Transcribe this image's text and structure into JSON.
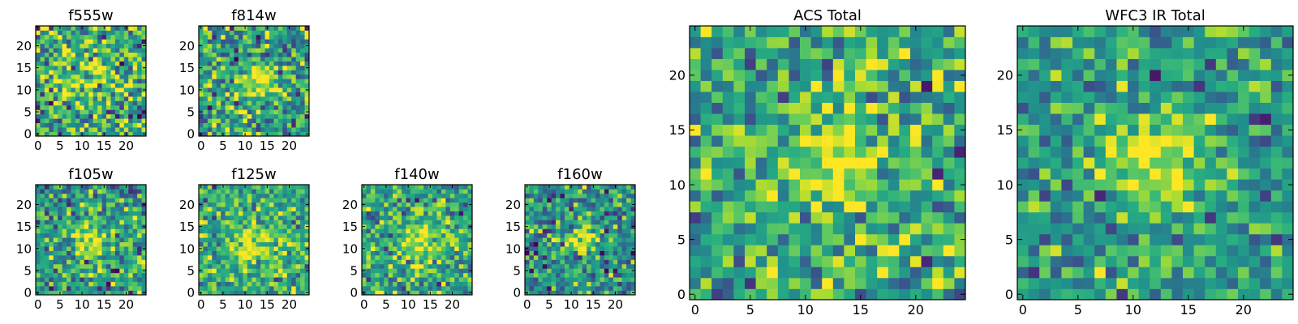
{
  "chart_data": [
    {
      "type": "heatmap",
      "title": "f555w",
      "xlabel": "",
      "ylabel": "",
      "xlim": [
        -0.5,
        24.5
      ],
      "ylim": [
        -0.5,
        24.5
      ],
      "xticks": [
        0,
        5,
        10,
        15,
        20
      ],
      "yticks": [
        0,
        5,
        10,
        15,
        20
      ],
      "grid_size": 25,
      "colormap": "viridis",
      "seed": 11,
      "noise": 0.65,
      "peak": 0.25,
      "center": [
        11,
        12
      ],
      "width": 4.0,
      "base": 0.62
    },
    {
      "type": "heatmap",
      "title": "f814w",
      "xlabel": "",
      "ylabel": "",
      "xlim": [
        -0.5,
        24.5
      ],
      "ylim": [
        -0.5,
        24.5
      ],
      "xticks": [
        0,
        5,
        10,
        15,
        20
      ],
      "yticks": [
        0,
        5,
        10,
        15,
        20
      ],
      "grid_size": 25,
      "colormap": "viridis",
      "seed": 23,
      "noise": 0.6,
      "peak": 0.45,
      "center": [
        13,
        12
      ],
      "width": 2.6,
      "base": 0.58
    },
    {
      "type": "heatmap",
      "title": "f105w",
      "xlabel": "",
      "ylabel": "",
      "xlim": [
        -0.5,
        24.5
      ],
      "ylim": [
        -0.5,
        24.5
      ],
      "xticks": [
        0,
        5,
        10,
        15,
        20
      ],
      "yticks": [
        0,
        5,
        10,
        15,
        20
      ],
      "grid_size": 25,
      "colormap": "viridis",
      "seed": 37,
      "noise": 0.55,
      "peak": 0.4,
      "center": [
        12,
        12
      ],
      "width": 2.8,
      "base": 0.56
    },
    {
      "type": "heatmap",
      "title": "f125w",
      "xlabel": "",
      "ylabel": "",
      "xlim": [
        -0.5,
        24.5
      ],
      "ylim": [
        -0.5,
        24.5
      ],
      "xticks": [
        0,
        5,
        10,
        15,
        20
      ],
      "yticks": [
        0,
        5,
        10,
        15,
        20
      ],
      "grid_size": 25,
      "colormap": "viridis",
      "seed": 41,
      "noise": 0.5,
      "peak": 0.35,
      "center": [
        12,
        11
      ],
      "width": 3.2,
      "base": 0.62
    },
    {
      "type": "heatmap",
      "title": "f140w",
      "xlabel": "",
      "ylabel": "",
      "xlim": [
        -0.5,
        24.5
      ],
      "ylim": [
        -0.5,
        24.5
      ],
      "xticks": [
        0,
        5,
        10,
        15,
        20
      ],
      "yticks": [
        0,
        5,
        10,
        15,
        20
      ],
      "grid_size": 25,
      "colormap": "viridis",
      "seed": 53,
      "noise": 0.5,
      "peak": 0.35,
      "center": [
        13,
        11
      ],
      "width": 3.0,
      "base": 0.6
    },
    {
      "type": "heatmap",
      "title": "f160w",
      "xlabel": "",
      "ylabel": "",
      "xlim": [
        -0.5,
        24.5
      ],
      "ylim": [
        -0.5,
        24.5
      ],
      "xticks": [
        0,
        5,
        10,
        15,
        20
      ],
      "yticks": [
        0,
        5,
        10,
        15,
        20
      ],
      "grid_size": 25,
      "colormap": "viridis",
      "seed": 67,
      "noise": 0.55,
      "peak": 0.45,
      "center": [
        12,
        12
      ],
      "width": 2.6,
      "base": 0.5
    },
    {
      "type": "heatmap",
      "title": "ACS Total",
      "xlabel": "",
      "ylabel": "",
      "xlim": [
        -0.5,
        24.5
      ],
      "ylim": [
        -0.5,
        24.5
      ],
      "xticks": [
        0,
        5,
        10,
        15,
        20
      ],
      "yticks": [
        0,
        5,
        10,
        15,
        20
      ],
      "grid_size": 25,
      "colormap": "viridis",
      "seed": 79,
      "noise": 0.55,
      "peak": 0.4,
      "center": [
        13,
        12
      ],
      "width": 2.8,
      "base": 0.62
    },
    {
      "type": "heatmap",
      "title": "WFC3 IR Total",
      "xlabel": "",
      "ylabel": "",
      "xlim": [
        -0.5,
        24.5
      ],
      "ylim": [
        -0.5,
        24.5
      ],
      "xticks": [
        0,
        5,
        10,
        15,
        20
      ],
      "yticks": [
        0,
        5,
        10,
        15,
        20
      ],
      "grid_size": 25,
      "colormap": "viridis",
      "seed": 97,
      "noise": 0.45,
      "peak": 0.45,
      "center": [
        12,
        12
      ],
      "width": 3.2,
      "base": 0.55
    }
  ]
}
